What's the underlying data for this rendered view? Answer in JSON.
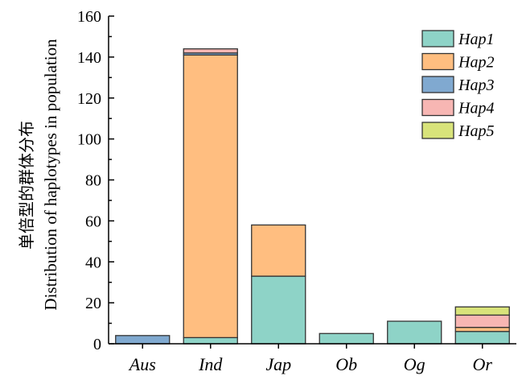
{
  "chart_data": {
    "type": "bar",
    "stacked": true,
    "categories": [
      "Aus",
      "Ind",
      "Jap",
      "Ob",
      "Og",
      "Or"
    ],
    "series": [
      {
        "name": "Hap1",
        "color": "#8ed3c7",
        "values": [
          0,
          3,
          33,
          5,
          11,
          6
        ]
      },
      {
        "name": "Hap2",
        "color": "#ffbe80",
        "values": [
          0,
          138,
          25,
          0,
          0,
          2
        ]
      },
      {
        "name": "Hap3",
        "color": "#80a9d0",
        "values": [
          4,
          1,
          0,
          0,
          0,
          0
        ]
      },
      {
        "name": "Hap4",
        "color": "#f7b6b3",
        "values": [
          0,
          2,
          0,
          0,
          0,
          6
        ]
      },
      {
        "name": "Hap5",
        "color": "#d8e37a",
        "values": [
          0,
          0,
          0,
          0,
          0,
          4
        ]
      }
    ],
    "ylabel_cn": "单倍型的群体分布",
    "ylabel": "Distribution of haplotypes in population",
    "xlabel": "",
    "ylim": [
      0,
      160
    ],
    "yticks": [
      0,
      20,
      40,
      60,
      80,
      100,
      120,
      140,
      160
    ],
    "legend_position": "top-right",
    "grid": false
  }
}
